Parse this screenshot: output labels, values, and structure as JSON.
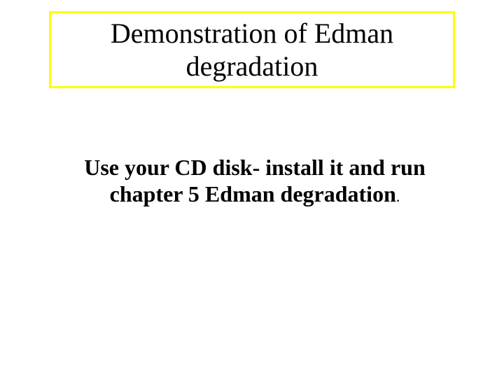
{
  "slide": {
    "background_color": "#ffffff",
    "font_family": "Times New Roman",
    "title": {
      "text": "Demonstration of Edman degradation",
      "fontsize": 40,
      "color": "#000000",
      "font_weight": "normal",
      "box_border_color": "#ffff00",
      "box_border_width": 3
    },
    "body": {
      "text": "Use your CD disk- install it  and run chapter 5 Edman degradation",
      "period": ".",
      "fontsize": 32,
      "color": "#000000",
      "font_weight": "bold"
    }
  }
}
